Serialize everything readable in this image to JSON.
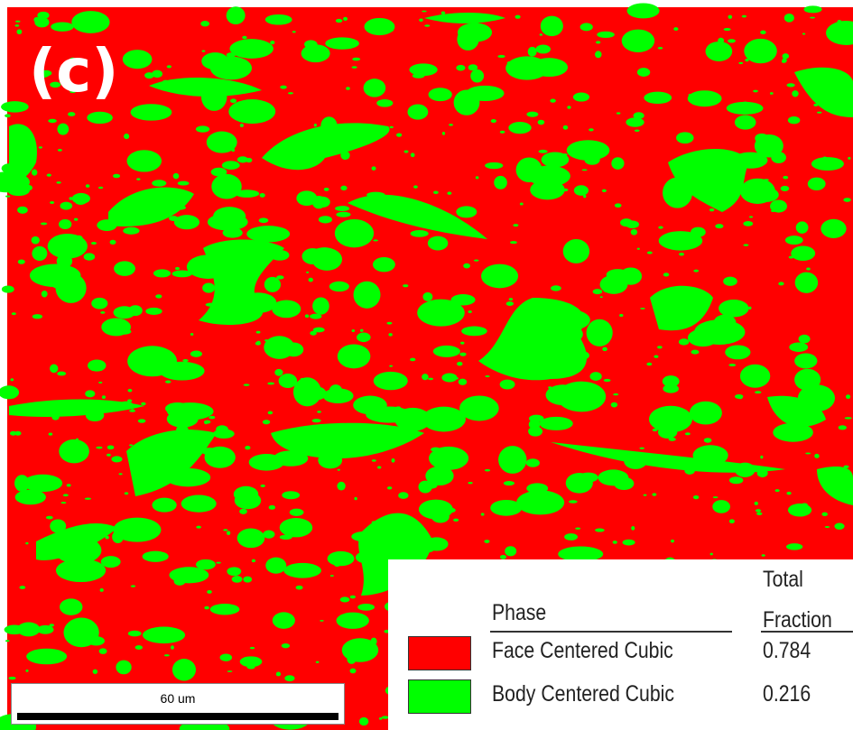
{
  "panel_label": "(c)",
  "scale_bar": {
    "label": "60 um"
  },
  "legend": {
    "headers": [
      "Phase",
      "Total Fraction"
    ],
    "rows": [
      {
        "phase": "Face Centered Cubic",
        "fraction": 0.784,
        "color": "#ff0000"
      },
      {
        "phase": "Body Centered Cubic",
        "fraction": 0.216,
        "color": "#00ff00"
      }
    ]
  }
}
